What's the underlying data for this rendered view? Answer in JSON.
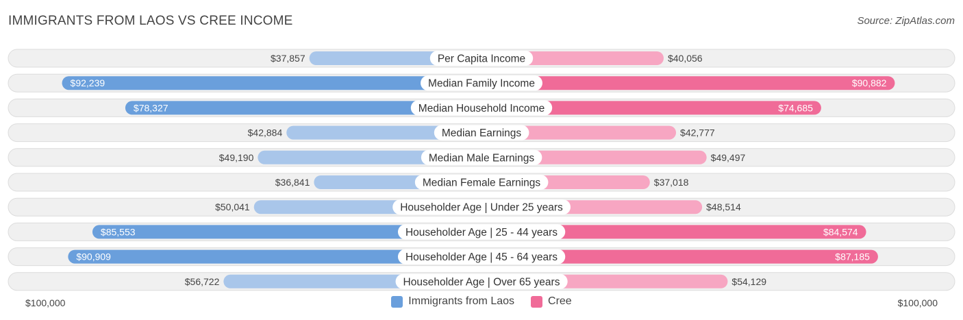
{
  "header": {
    "title": "IMMIGRANTS FROM LAOS VS CREE INCOME",
    "source": "Source: ZipAtlas.com"
  },
  "colors": {
    "left_strong": "#6a9fdc",
    "left_light": "#a9c6ea",
    "right_strong": "#f06b98",
    "right_light": "#f7a6c2",
    "track": "#f0f0f0",
    "track_border": "#dcdcdc"
  },
  "chart_data": {
    "type": "bar",
    "orientation": "diverging-horizontal",
    "title": "IMMIGRANTS FROM LAOS VS CREE INCOME",
    "xlim": [
      0,
      100000
    ],
    "axis_min_label": "$100,000",
    "axis_max_label": "$100,000",
    "legend_position": "bottom-center",
    "categories": [
      "Per Capita Income",
      "Median Family Income",
      "Median Household Income",
      "Median Earnings",
      "Median Male Earnings",
      "Median Female Earnings",
      "Householder Age | Under 25 years",
      "Householder Age | 25 - 44 years",
      "Householder Age | 45 - 64 years",
      "Householder Age | Over 65 years"
    ],
    "series": [
      {
        "name": "Immigrants from Laos",
        "side": "left",
        "values": [
          37857,
          92239,
          78327,
          42884,
          49190,
          36841,
          50041,
          85553,
          90909,
          56722
        ],
        "labels": [
          "$37,857",
          "$92,239",
          "$78,327",
          "$42,884",
          "$49,190",
          "$36,841",
          "$50,041",
          "$85,553",
          "$90,909",
          "$56,722"
        ]
      },
      {
        "name": "Cree",
        "side": "right",
        "values": [
          40056,
          90882,
          74685,
          42777,
          49497,
          37018,
          48514,
          84574,
          87185,
          54129
        ],
        "labels": [
          "$40,056",
          "$90,882",
          "$74,685",
          "$42,777",
          "$49,497",
          "$37,018",
          "$48,514",
          "$84,574",
          "$87,185",
          "$54,129"
        ]
      }
    ]
  },
  "legend": {
    "left_label": "Immigrants from Laos",
    "right_label": "Cree"
  }
}
